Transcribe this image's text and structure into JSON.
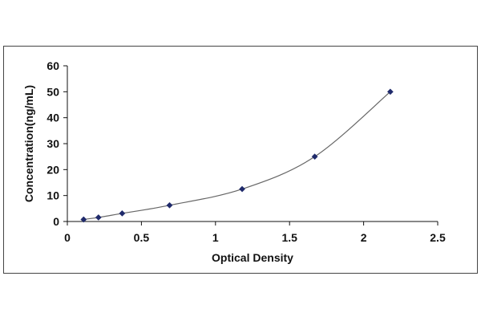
{
  "chart_data": {
    "type": "scatter",
    "title": "",
    "xlabel": "Optical Density",
    "ylabel": "Concentration(ng/mL)",
    "xlim": [
      0,
      2.5
    ],
    "ylim": [
      0,
      60
    ],
    "xticks": [
      0,
      0.5,
      1,
      1.5,
      2,
      2.5
    ],
    "yticks": [
      0,
      10,
      20,
      30,
      40,
      50,
      60
    ],
    "xtick_labels": [
      "0",
      "0.5",
      "1",
      "1.5",
      "2",
      "2.5"
    ],
    "ytick_labels": [
      "0",
      "10",
      "20",
      "30",
      "40",
      "50",
      "60"
    ],
    "grid": false,
    "legend": "none",
    "points": {
      "x": [
        0.11,
        0.21,
        0.37,
        0.69,
        1.18,
        1.67,
        2.18
      ],
      "y": [
        0.78,
        1.56,
        3.12,
        6.25,
        12.5,
        25,
        50
      ]
    },
    "fit_curve": true,
    "colors": {
      "marker": "#1f2a6b",
      "curve": "#666666",
      "axis": "#111111"
    }
  }
}
